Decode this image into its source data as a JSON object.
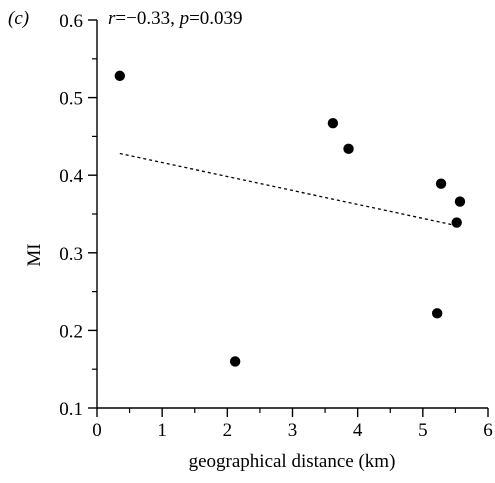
{
  "panel_label": "(c)",
  "chart_data": {
    "type": "scatter",
    "xlabel": "geographical distance (km)",
    "ylabel": "MI",
    "xlim": [
      0,
      6
    ],
    "ylim": [
      0.1,
      0.6
    ],
    "xticks": [
      0,
      1,
      2,
      3,
      4,
      5,
      6
    ],
    "yticks": [
      0.1,
      0.2,
      0.3,
      0.4,
      0.5,
      0.6
    ],
    "ytick_labels": [
      "0.1",
      "0.2",
      "0.3",
      "0.4",
      "0.5",
      "0.6"
    ],
    "xtick_labels": [
      "0",
      "1",
      "2",
      "3",
      "4",
      "5",
      "6"
    ],
    "annotation": {
      "r_label": "r",
      "r_value": "=−0.33, ",
      "p_label": "p",
      "p_value": "=0.039"
    },
    "points": [
      {
        "x": 0.35,
        "y": 0.528
      },
      {
        "x": 2.12,
        "y": 0.16
      },
      {
        "x": 3.62,
        "y": 0.467
      },
      {
        "x": 3.86,
        "y": 0.434
      },
      {
        "x": 5.22,
        "y": 0.222
      },
      {
        "x": 5.28,
        "y": 0.389
      },
      {
        "x": 5.52,
        "y": 0.339
      },
      {
        "x": 5.57,
        "y": 0.366
      }
    ],
    "trendline": {
      "x": [
        0.35,
        5.52
      ],
      "y": [
        0.428,
        0.335
      ]
    },
    "grid": false,
    "legend": "none"
  }
}
